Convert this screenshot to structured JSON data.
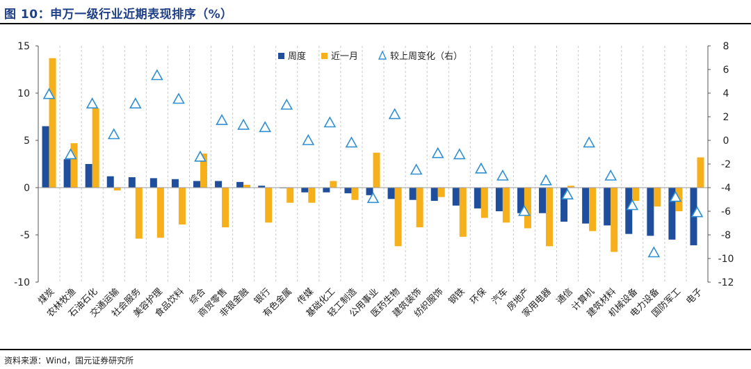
{
  "title": "图 10：申万一级行业近期表现排序（%）",
  "source": "资料来源：Wind，国元证券研究所",
  "colors": {
    "weekly": "#1f4e9c",
    "monthly": "#f5b01b",
    "change": "#2f8fd0",
    "title": "#1f3f86"
  },
  "chart_data": {
    "type": "bar",
    "title": "申万一级行业近期表现排序（%）",
    "categories": [
      "煤炭",
      "农林牧渔",
      "石油石化",
      "交通运输",
      "社会服务",
      "美容护理",
      "食品饮料",
      "综合",
      "商贸零售",
      "非银金融",
      "银行",
      "有色金属",
      "传媒",
      "基础化工",
      "轻工制造",
      "公用事业",
      "医药生物",
      "建筑装饰",
      "纺织服饰",
      "钢铁",
      "环保",
      "汽车",
      "房地产",
      "家用电器",
      "通信",
      "计算机",
      "建筑材料",
      "机械设备",
      "电力设备",
      "国防军工",
      "电子"
    ],
    "series": [
      {
        "name": "周度",
        "axis": "left",
        "type": "bar",
        "values": [
          6.5,
          3.0,
          2.5,
          1.2,
          1.1,
          1.0,
          0.9,
          0.7,
          0.7,
          0.6,
          0.2,
          0.0,
          -0.5,
          -0.5,
          -0.6,
          -0.8,
          -1.2,
          -1.3,
          -1.4,
          -1.9,
          -2.2,
          -2.5,
          -2.7,
          -2.7,
          -3.6,
          -3.8,
          -4.0,
          -4.9,
          -5.1,
          -5.5,
          -6.1
        ]
      },
      {
        "name": "近一月",
        "axis": "left",
        "type": "bar",
        "values": [
          13.7,
          4.7,
          8.4,
          -0.3,
          -5.4,
          -5.3,
          -3.9,
          3.6,
          -4.2,
          0.3,
          -3.7,
          -1.6,
          -1.6,
          0.7,
          -1.3,
          3.7,
          -6.2,
          -4.2,
          -1.0,
          -5.2,
          -3.2,
          -3.7,
          -4.3,
          -6.2,
          0.2,
          -4.6,
          -6.8,
          -1.4,
          -2.0,
          -2.5,
          3.2
        ]
      },
      {
        "name": "较上周变化（右）",
        "axis": "right",
        "type": "scatter",
        "values": [
          3.9,
          -1.2,
          3.1,
          0.5,
          3.1,
          5.5,
          3.5,
          -1.4,
          1.7,
          1.3,
          1.1,
          3.0,
          0.0,
          1.5,
          -0.2,
          -4.9,
          2.2,
          -2.5,
          -1.1,
          -1.2,
          -2.4,
          -3.0,
          -6.0,
          -3.4,
          -4.6,
          -0.2,
          -3.0,
          -5.5,
          -9.5,
          -4.8,
          -6.1
        ]
      }
    ],
    "left_axis": {
      "min": -10,
      "max": 15,
      "ticks": [
        -10,
        -5,
        0,
        5,
        10,
        15
      ]
    },
    "right_axis": {
      "min": -12,
      "max": 8,
      "ticks": [
        -12,
        -10,
        -8,
        -6,
        -4,
        -2,
        0,
        2,
        4,
        6,
        8
      ]
    },
    "legend_position": "top-center",
    "grid": "vertical-dashed"
  }
}
